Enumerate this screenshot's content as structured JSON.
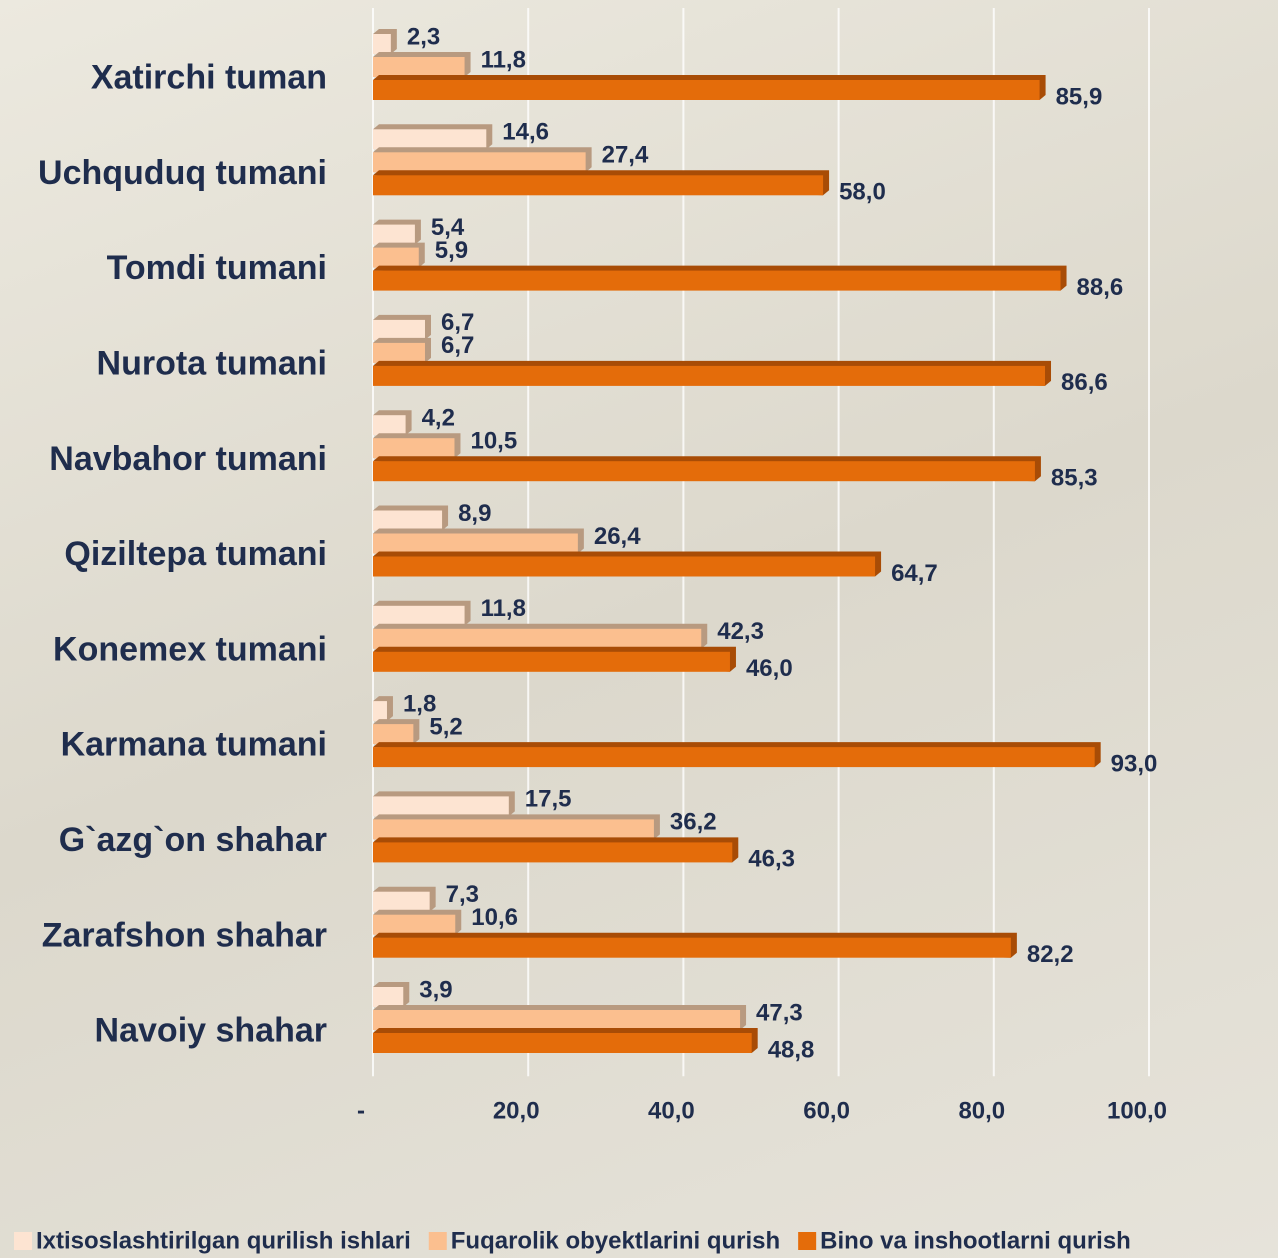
{
  "chart_data": {
    "type": "bar",
    "orientation": "horizontal",
    "categories": [
      "Xatirchi tuman",
      "Uchquduq tumani",
      "Tomdi tumani",
      "Nurota tumani",
      "Navbahor tumani",
      "Qiziltepa tumani",
      "Konemex tumani",
      "Karmana tumani",
      "G`azg`on shahar",
      "Zarafshon shahar",
      "Navoiy shahar"
    ],
    "series": [
      {
        "name": "Ixtisoslashtirilgan qurilish ishlari",
        "color": "#fde4d2",
        "values": [
          2.3,
          14.6,
          5.4,
          6.7,
          4.2,
          8.9,
          11.8,
          1.8,
          17.5,
          7.3,
          3.9
        ],
        "value_labels": [
          "2,3",
          "14,6",
          "5,4",
          "6,7",
          "4,2",
          "8,9",
          "11,8",
          "1,8",
          "17,5",
          "7,3",
          "3,9"
        ]
      },
      {
        "name": "Fuqarolik obyektlarini qurish",
        "color": "#fbbf8f",
        "values": [
          11.8,
          27.4,
          5.9,
          6.7,
          10.5,
          26.4,
          42.3,
          5.2,
          36.2,
          10.6,
          47.3
        ],
        "value_labels": [
          "11,8",
          "27,4",
          "5,9",
          "6,7",
          "10,5",
          "26,4",
          "42,3",
          "5,2",
          "36,2",
          "10,6",
          "47,3"
        ]
      },
      {
        "name": "Bino va inshootlarni qurish",
        "color": "#e46c0a",
        "values": [
          85.9,
          58.0,
          88.6,
          86.6,
          85.3,
          64.7,
          46.0,
          93.0,
          46.3,
          82.2,
          48.8
        ],
        "value_labels": [
          "85,9",
          "58,0",
          "88,6",
          "86,6",
          "85,3",
          "64,7",
          "46,0",
          "93,0",
          "46,3",
          "82,2",
          "48,8"
        ]
      }
    ],
    "xlim": [
      0,
      100
    ],
    "xticks": [
      {
        "value": 0,
        "label": "-"
      },
      {
        "value": 20,
        "label": "20,0"
      },
      {
        "value": 40,
        "label": "40,0"
      },
      {
        "value": 60,
        "label": "60,0"
      },
      {
        "value": 80,
        "label": "80,0"
      },
      {
        "value": 100,
        "label": "100,0"
      }
    ],
    "grid": true,
    "legend": "bottom"
  }
}
